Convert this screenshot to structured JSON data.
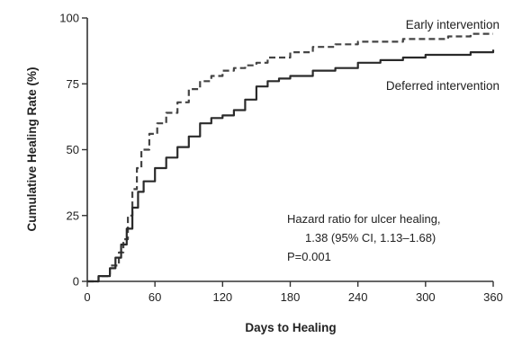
{
  "chart_data": {
    "type": "line",
    "xlabel": "Days to Healing",
    "ylabel": "Cumulative Healing Rate (%)",
    "xlim": [
      0,
      360
    ],
    "ylim": [
      0,
      100
    ],
    "x_ticks": [
      "0",
      "60",
      "120",
      "180",
      "240",
      "300",
      "360"
    ],
    "y_ticks": [
      "0",
      "25",
      "50",
      "75",
      "100"
    ],
    "grid": false,
    "series": [
      {
        "name": "Early intervention",
        "line_style": "dashed",
        "color": "#444444",
        "x": [
          0,
          10,
          20,
          28,
          32,
          36,
          40,
          44,
          48,
          55,
          62,
          70,
          80,
          90,
          100,
          110,
          120,
          130,
          140,
          150,
          160,
          180,
          200,
          220,
          240,
          260,
          280,
          300,
          320,
          340,
          360
        ],
        "y": [
          0,
          2,
          6,
          11,
          16,
          25,
          35,
          43,
          50,
          56,
          60,
          64,
          68,
          73,
          76,
          78,
          80,
          81,
          82,
          83,
          85,
          87,
          89,
          90,
          91,
          91,
          92,
          92,
          93,
          94,
          94
        ]
      },
      {
        "name": "Deferred intervention",
        "line_style": "solid",
        "color": "#2a2a2a",
        "x": [
          0,
          10,
          20,
          25,
          30,
          35,
          40,
          45,
          50,
          60,
          70,
          80,
          90,
          100,
          110,
          120,
          130,
          140,
          150,
          160,
          170,
          180,
          200,
          220,
          240,
          260,
          280,
          300,
          320,
          340,
          360
        ],
        "y": [
          0,
          2,
          5,
          9,
          14,
          20,
          28,
          34,
          38,
          43,
          47,
          51,
          55,
          60,
          62,
          63,
          65,
          69,
          74,
          76,
          77,
          78,
          80,
          81,
          83,
          84,
          85,
          86,
          86,
          87,
          88
        ]
      }
    ],
    "annotation": {
      "lines": [
        "Hazard ratio for ulcer healing,",
        "1.38 (95% CI, 1.13–1.68)",
        "P=0.001"
      ]
    }
  }
}
